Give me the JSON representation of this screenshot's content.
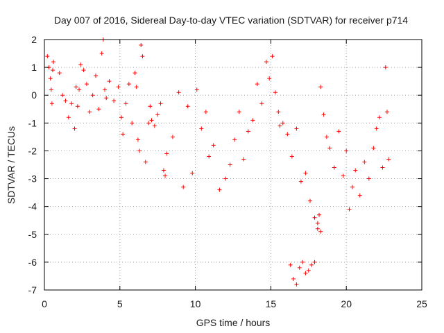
{
  "chart_data": {
    "type": "scatter",
    "title": "Day 007 of 2016, Sidereal Day-to-day VTEC variation (SDTVAR) for receiver p714",
    "xlabel": "GPS time / hours",
    "ylabel": "SDTVAR / TECUs",
    "xlim": [
      0,
      25
    ],
    "ylim": [
      -7,
      2
    ],
    "xticks": [
      0,
      5,
      10,
      15,
      20,
      25
    ],
    "yticks": [
      -7,
      -6,
      -5,
      -4,
      -3,
      -2,
      -1,
      0,
      1,
      2
    ],
    "grid": true,
    "marker": "+",
    "color": "#ff0000",
    "series": [
      {
        "name": "SDTVAR",
        "x": [
          0.2,
          0.3,
          0.4,
          0.5,
          0.6,
          0.45,
          0.55,
          1.0,
          1.2,
          1.4,
          1.6,
          1.8,
          2.0,
          2.1,
          2.2,
          2.3,
          2.4,
          2.6,
          2.8,
          3.0,
          3.2,
          3.4,
          3.6,
          3.8,
          3.9,
          4.0,
          4.1,
          4.3,
          4.6,
          4.9,
          5.1,
          5.2,
          5.4,
          5.6,
          5.8,
          6.0,
          6.1,
          6.2,
          6.3,
          6.4,
          6.5,
          6.7,
          6.9,
          7.0,
          7.1,
          7.3,
          7.5,
          7.7,
          7.9,
          8.0,
          8.1,
          8.5,
          8.9,
          9.2,
          9.5,
          9.8,
          10.1,
          10.4,
          10.7,
          10.9,
          11.2,
          11.6,
          12.0,
          12.3,
          12.6,
          12.9,
          13.2,
          13.5,
          13.8,
          14.1,
          14.4,
          14.7,
          14.9,
          15.1,
          15.3,
          15.5,
          15.6,
          15.8,
          16.1,
          16.4,
          16.7,
          17.0,
          17.3,
          17.6,
          17.9,
          18.1,
          18.3,
          18.5,
          18.7,
          18.9,
          19.2,
          19.5,
          19.8,
          20.0,
          20.2,
          20.4,
          20.6,
          20.9,
          21.2,
          21.5,
          21.8,
          22.0,
          22.2,
          22.4,
          22.6,
          22.7,
          22.8,
          16.3,
          16.5,
          16.7,
          16.9,
          17.1,
          17.3,
          17.5,
          17.7,
          17.9,
          18.1,
          18.2,
          18.3
        ],
        "y": [
          1.4,
          1.0,
          0.6,
          -0.3,
          1.2,
          0.2,
          0.9,
          0.8,
          0.0,
          -0.2,
          -0.8,
          -0.3,
          -1.2,
          0.3,
          -0.4,
          0.2,
          1.1,
          0.9,
          0.4,
          -0.6,
          0.0,
          0.7,
          -0.5,
          1.5,
          2.0,
          0.2,
          -0.1,
          0.5,
          -0.2,
          0.3,
          -0.8,
          -1.4,
          -0.3,
          0.4,
          -1.0,
          0.8,
          0.3,
          -1.6,
          -2.0,
          1.8,
          1.4,
          -2.4,
          -1.0,
          -0.4,
          -0.9,
          -1.1,
          -0.7,
          -0.3,
          -2.7,
          -2.9,
          -2.1,
          -1.5,
          0.1,
          -3.3,
          -0.4,
          -2.8,
          0.2,
          -1.2,
          -0.6,
          -2.2,
          -1.8,
          -3.4,
          -3.0,
          -2.5,
          -1.6,
          -0.6,
          -2.3,
          -1.3,
          -0.9,
          0.4,
          -0.3,
          1.2,
          0.6,
          1.4,
          0.1,
          -0.6,
          -1.1,
          -1.0,
          -1.4,
          -2.2,
          -1.2,
          -3.1,
          -2.8,
          -3.8,
          -4.4,
          -4.8,
          0.3,
          -0.7,
          -1.5,
          -1.9,
          -2.6,
          -1.3,
          -2.9,
          -2.0,
          -4.1,
          -3.3,
          -2.7,
          -3.6,
          -2.4,
          -3.0,
          -1.9,
          -1.2,
          -0.8,
          -2.6,
          1.0,
          -0.6,
          -2.3,
          -6.1,
          -6.6,
          -6.8,
          -6.2,
          -6.0,
          -6.4,
          -6.3,
          -6.1,
          -6.0,
          -4.6,
          -4.3,
          -4.9
        ]
      }
    ]
  }
}
